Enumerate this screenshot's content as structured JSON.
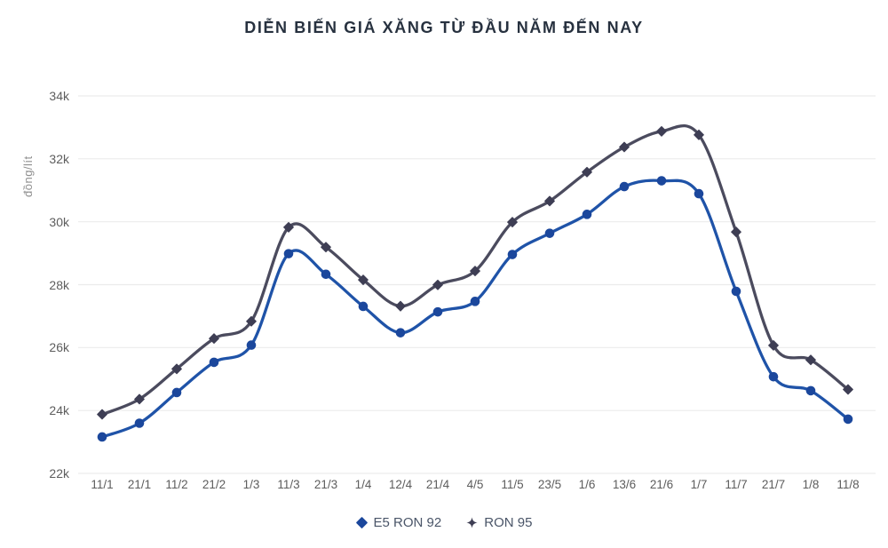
{
  "title": "DIỄN BIẾN GIÁ XĂNG TỪ ĐẦU NĂM ĐẾN NAY",
  "colors": {
    "e5_line": "#1f53a8",
    "e5_marker": "#1b479c",
    "ron95_line": "#4b4b5e",
    "ron95_marker": "#3e3e54",
    "grid": "#ececec",
    "title_text": "#27313f",
    "tick_text": "#5d5d5d",
    "axis_name_text": "#8f8f8f",
    "legend_text": "#4a5568",
    "background": "#ffffff"
  },
  "chart_data": {
    "type": "line",
    "smooth": true,
    "title": "DIỄN BIẾN GIÁ XĂNG TỪ ĐẦU NĂM ĐẾN NAY",
    "ylabel": "đồng/lít",
    "xlabel": "",
    "grid": "horizontal",
    "legend_position": "bottom",
    "ylim": [
      22000,
      34000
    ],
    "ytick_values": [
      22000,
      24000,
      26000,
      28000,
      30000,
      32000,
      34000
    ],
    "ytick_labels": [
      "22k",
      "24k",
      "26k",
      "28k",
      "30k",
      "32k",
      "34k"
    ],
    "x": [
      "11/1",
      "21/1",
      "11/2",
      "21/2",
      "1/3",
      "11/3",
      "21/3",
      "1/4",
      "12/4",
      "21/4",
      "4/5",
      "11/5",
      "23/5",
      "1/6",
      "13/6",
      "21/6",
      "1/7",
      "11/7",
      "21/7",
      "1/8",
      "11/8"
    ],
    "series": [
      {
        "name": "E5 RON 92",
        "marker": "circle",
        "color": "#1f53a8",
        "marker_color": "#1b479c",
        "values": [
          23159,
          23595,
          24571,
          25532,
          26077,
          28985,
          28330,
          27309,
          26471,
          27134,
          27468,
          28959,
          29633,
          30235,
          31117,
          31302,
          30891,
          27788,
          25073,
          24629,
          23725
        ]
      },
      {
        "name": "RON 95",
        "marker": "diamond",
        "color": "#4b4b5e",
        "marker_color": "#3e3e54",
        "values": [
          23876,
          24360,
          25322,
          26287,
          26834,
          29824,
          29192,
          28153,
          27317,
          27992,
          28434,
          29988,
          30657,
          31578,
          32375,
          32873,
          32763,
          29675,
          26070,
          25608,
          24669
        ]
      }
    ]
  },
  "legend": {
    "items": [
      {
        "label": "E5 RON 92"
      },
      {
        "label": "RON 95"
      }
    ]
  }
}
